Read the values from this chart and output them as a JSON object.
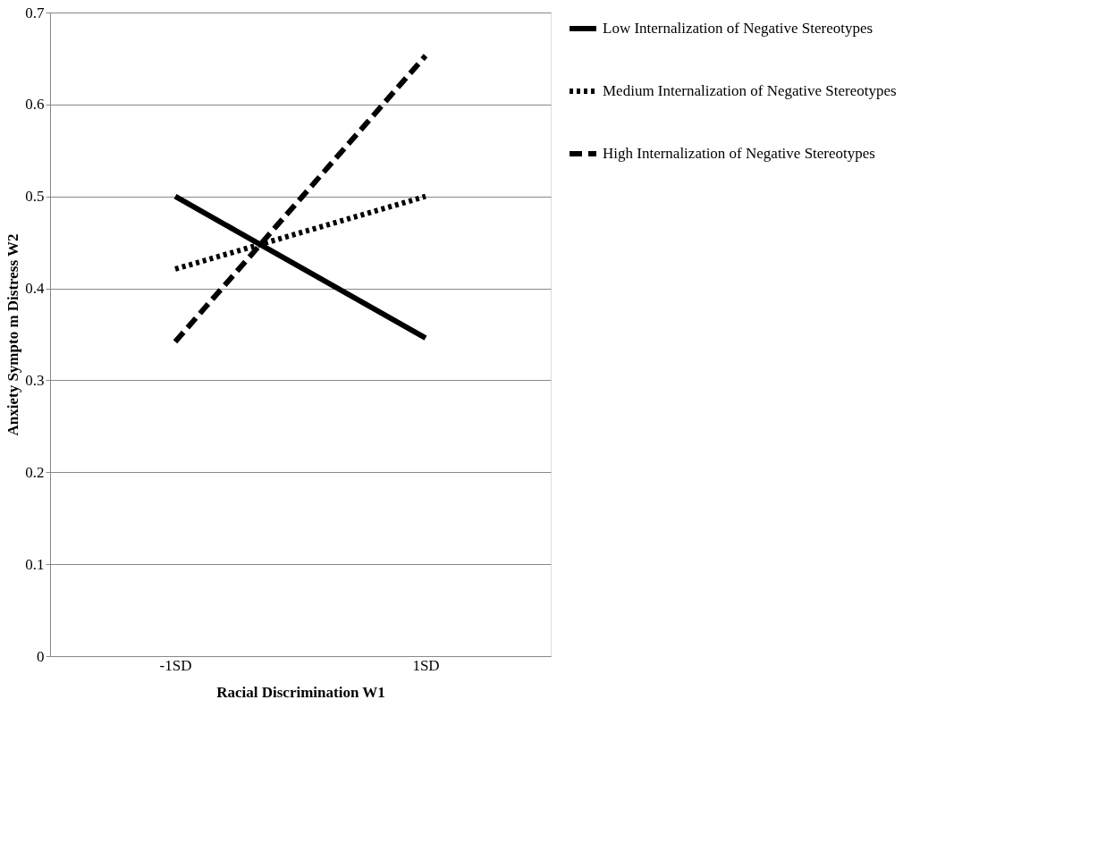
{
  "chart_data": {
    "type": "line",
    "xlabel": "Racial Discrimination W1",
    "ylabel": "Anxiety Sympto m Distress W2",
    "categories": [
      "-1SD",
      "1SD"
    ],
    "series": [
      {
        "name": "Low Internalization of Negative Stereotypes",
        "color": "#000000",
        "line_style": "solid",
        "values": [
          0.5,
          0.346
        ]
      },
      {
        "name": "Medium Internalization of Negative Stereotypes",
        "color": "#000000",
        "line_style": "dotted",
        "values": [
          0.421,
          0.5
        ]
      },
      {
        "name": "High Internalization of Negative Stereotypes",
        "color": "#000000",
        "line_style": "dashed",
        "values": [
          0.342,
          0.653
        ]
      }
    ],
    "ylim": [
      0,
      0.7
    ],
    "yticks": [
      0,
      0.1,
      0.2,
      0.3,
      0.4,
      0.5,
      0.6,
      0.7
    ],
    "grid": "y",
    "legend": "right",
    "marker": "none"
  }
}
